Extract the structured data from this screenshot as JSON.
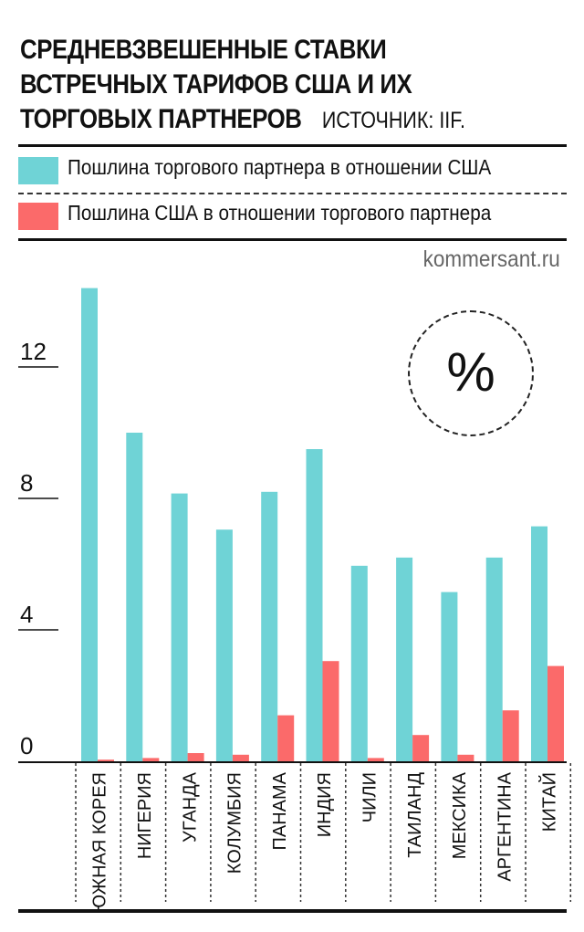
{
  "title_lines": [
    "СРЕДНЕВЗВЕШЕННЫЕ СТАВКИ",
    "ВСТРЕЧНЫХ ТАРИФОВ США И ИХ",
    "ТОРГОВЫХ ПАРТНЕРОВ"
  ],
  "source": "ИСТОЧНИК: IIF.",
  "site": "kommersant.ru",
  "unit": "%",
  "colors": {
    "partner": "#6fd3d6",
    "usa": "#fb6a6a"
  },
  "chart_data": {
    "type": "bar",
    "title": "СРЕДНЕВЗВЕШЕННЫЕ СТАВКИ ВСТРЕЧНЫХ ТАРИФОВ США И ИХ ТОРГОВЫХ ПАРТНЕРОВ",
    "unit": "%",
    "categories": [
      "ЮЖНАЯ КОРЕЯ",
      "НИГЕРИЯ",
      "УГАНДА",
      "КОЛУМБИЯ",
      "ПАНАМА",
      "ИНДИЯ",
      "ЧИЛИ",
      "ТАИЛАНД",
      "МЕКСИКА",
      "АРГЕНТИНА",
      "КИТАЙ"
    ],
    "series": [
      {
        "name": "Пошлина торгового партнера в отношении США",
        "color": "#6fd3d6",
        "values": [
          14.4,
          10.0,
          8.15,
          7.05,
          8.2,
          9.5,
          5.95,
          6.2,
          5.15,
          6.2,
          7.15
        ]
      },
      {
        "name": "Пошлина США в отношении торгового партнера",
        "color": "#fb6a6a",
        "values": [
          0.05,
          0.1,
          0.25,
          0.2,
          1.4,
          3.05,
          0.1,
          0.8,
          0.2,
          1.55,
          2.9
        ]
      }
    ],
    "yticks": [
      0,
      4,
      8,
      12
    ],
    "ylim": [
      0,
      15
    ],
    "grid": false,
    "legend": "top"
  }
}
